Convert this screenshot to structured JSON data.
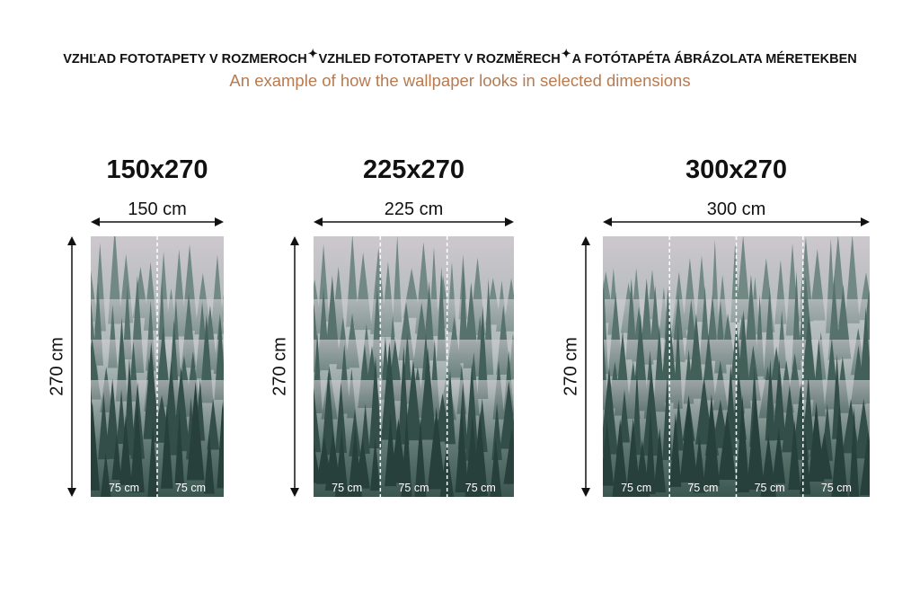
{
  "header": {
    "titles": [
      "VZHĽAD FOTOTAPETY V ROZMEROCH",
      "VZHLED FOTOTAPETY V ROZMĚRECH",
      "A FOTÓTAPÉTA ÁBRÁZOLATA MÉRETEKBEN"
    ],
    "separator_icon": "sparkle-icon",
    "subtitle": "An example of how the wallpaper looks in selected dimensions"
  },
  "colors": {
    "subtitle": "#b87a4f",
    "sky": "#e9dfe6",
    "forest": "#2c4640"
  },
  "panels": [
    {
      "title": "150x270",
      "width_label": "150 cm",
      "height_label": "270 cm",
      "segments": [
        "75 cm",
        "75 cm"
      ]
    },
    {
      "title": "225x270",
      "width_label": "225 cm",
      "height_label": "270 cm",
      "segments": [
        "75 cm",
        "75 cm",
        "75 cm"
      ]
    },
    {
      "title": "300x270",
      "width_label": "300 cm",
      "height_label": "270 cm",
      "segments": [
        "75 cm",
        "75 cm",
        "75 cm",
        "75 cm"
      ]
    }
  ]
}
